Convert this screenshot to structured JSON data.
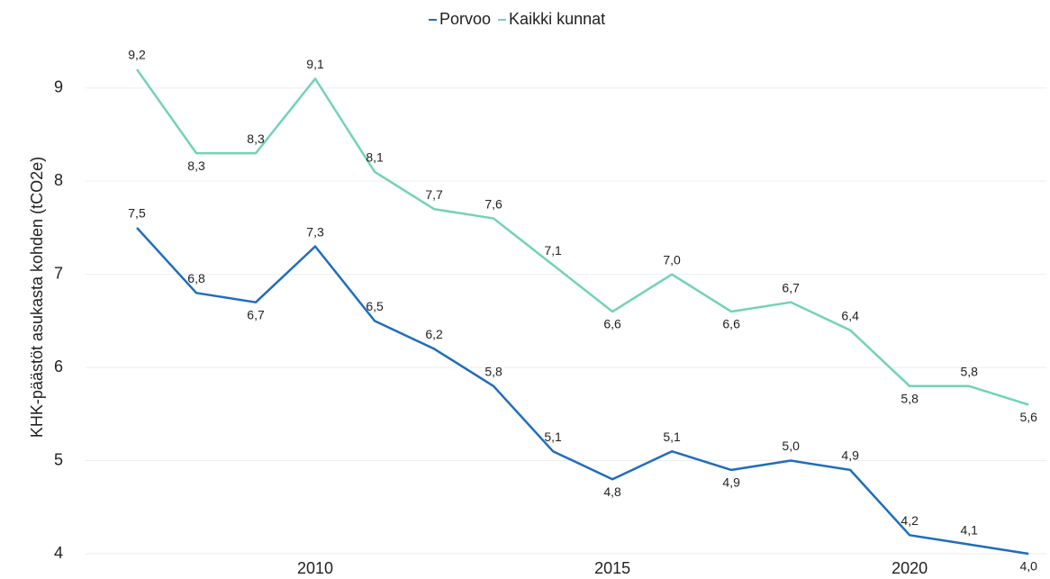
{
  "chart_data": {
    "type": "line",
    "y_label": "KHK-päästöt asukasta kohden (tCO2e)",
    "x": [
      2007,
      2008,
      2009,
      2010,
      2011,
      2012,
      2013,
      2014,
      2015,
      2016,
      2017,
      2018,
      2019,
      2020,
      2021,
      2022
    ],
    "series": [
      {
        "name": "Porvoo",
        "color": "#1f6dbd",
        "values": [
          7.5,
          6.8,
          6.7,
          7.3,
          6.5,
          6.2,
          5.8,
          5.1,
          4.8,
          5.1,
          4.9,
          5.0,
          4.9,
          4.2,
          4.1,
          4.0
        ],
        "value_labels": [
          "7,5",
          "6,8",
          "6,7",
          "7,3",
          "6,5",
          "6,2",
          "5,8",
          "5,1",
          "4,8",
          "5,1",
          "4,9",
          "5,0",
          "4,9",
          "4,2",
          "4,1",
          "4,0"
        ]
      },
      {
        "name": "Kaikki kunnat",
        "color": "#72d3b2",
        "values": [
          9.2,
          8.3,
          8.3,
          9.1,
          8.1,
          7.7,
          7.6,
          7.1,
          6.6,
          7.0,
          6.6,
          6.7,
          6.4,
          5.8,
          5.8,
          5.6
        ],
        "value_labels": [
          "9,2",
          "8,3",
          "8,3",
          "9,1",
          "8,1",
          "7,7",
          "7,6",
          "7,1",
          "6,6",
          "7,0",
          "6,6",
          "6,7",
          "6,4",
          "5,8",
          "5,8",
          "5,6"
        ]
      }
    ],
    "xlim": [
      2006.5,
      2022.3
    ],
    "xticks": [
      2010,
      2015,
      2020
    ],
    "ylim": [
      4,
      9.5
    ],
    "yticks": [
      4,
      5,
      6,
      7,
      8,
      9
    ],
    "grid": true,
    "legend": "top"
  }
}
